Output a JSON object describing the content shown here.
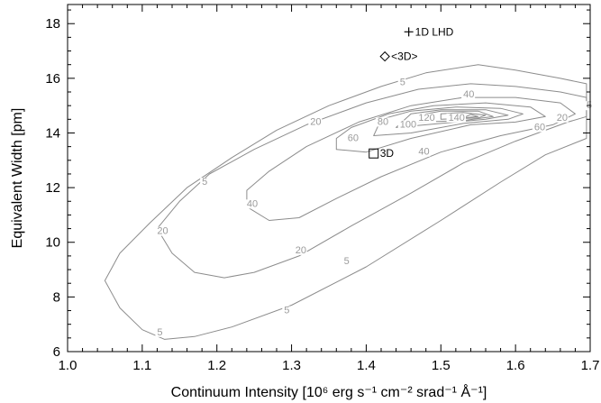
{
  "chart_data": {
    "type": "contour",
    "xlabel": "Continuum Intensity [10⁶ erg s⁻¹ cm⁻² srad⁻¹ Å⁻¹]",
    "ylabel": "Equivalent Width [pm]",
    "xlim": [
      1.0,
      1.7
    ],
    "ylim": [
      6.0,
      18.7
    ],
    "xticks": [
      "1.0",
      "1.1",
      "1.2",
      "1.3",
      "1.4",
      "1.5",
      "1.6",
      "1.7"
    ],
    "yticks": [
      "6",
      "8",
      "10",
      "12",
      "14",
      "16",
      "18"
    ],
    "line_color": "#8c8c8c",
    "label_color": "#9a9a9a",
    "contours": [
      {
        "level": "5",
        "points": [
          [
            1.05,
            8.6
          ],
          [
            1.07,
            7.6
          ],
          [
            1.1,
            6.8
          ],
          [
            1.13,
            6.45
          ],
          [
            1.17,
            6.55
          ],
          [
            1.22,
            6.9
          ],
          [
            1.3,
            7.7
          ],
          [
            1.4,
            9.1
          ],
          [
            1.5,
            10.8
          ],
          [
            1.58,
            12.2
          ],
          [
            1.64,
            13.2
          ],
          [
            1.695,
            13.8
          ],
          [
            1.695,
            15.8
          ],
          [
            1.66,
            16.0
          ],
          [
            1.6,
            16.3
          ],
          [
            1.55,
            16.5
          ],
          [
            1.48,
            16.2
          ],
          [
            1.42,
            15.7
          ],
          [
            1.35,
            15.0
          ],
          [
            1.28,
            14.1
          ],
          [
            1.22,
            13.1
          ],
          [
            1.16,
            12.0
          ],
          [
            1.11,
            10.7
          ],
          [
            1.07,
            9.6
          ],
          [
            1.05,
            8.6
          ]
        ]
      },
      {
        "level": "20",
        "points": [
          [
            1.12,
            10.5
          ],
          [
            1.14,
            9.6
          ],
          [
            1.17,
            8.9
          ],
          [
            1.21,
            8.7
          ],
          [
            1.25,
            8.9
          ],
          [
            1.31,
            9.5
          ],
          [
            1.38,
            10.6
          ],
          [
            1.46,
            11.8
          ],
          [
            1.53,
            12.9
          ],
          [
            1.6,
            13.7
          ],
          [
            1.67,
            14.4
          ],
          [
            1.695,
            14.6
          ],
          [
            1.695,
            15.3
          ],
          [
            1.66,
            15.5
          ],
          [
            1.6,
            15.7
          ],
          [
            1.54,
            15.8
          ],
          [
            1.47,
            15.6
          ],
          [
            1.4,
            15.1
          ],
          [
            1.32,
            14.3
          ],
          [
            1.25,
            13.4
          ],
          [
            1.19,
            12.5
          ],
          [
            1.15,
            11.5
          ],
          [
            1.12,
            10.5
          ]
        ]
      },
      {
        "level": "40",
        "points": [
          [
            1.24,
            11.3
          ],
          [
            1.27,
            10.8
          ],
          [
            1.31,
            10.9
          ],
          [
            1.36,
            11.6
          ],
          [
            1.42,
            12.4
          ],
          [
            1.5,
            13.3
          ],
          [
            1.58,
            13.9
          ],
          [
            1.65,
            14.3
          ],
          [
            1.68,
            14.7
          ],
          [
            1.66,
            15.1
          ],
          [
            1.6,
            15.3
          ],
          [
            1.53,
            15.3
          ],
          [
            1.46,
            15.0
          ],
          [
            1.39,
            14.4
          ],
          [
            1.32,
            13.5
          ],
          [
            1.27,
            12.6
          ],
          [
            1.24,
            11.9
          ],
          [
            1.24,
            11.3
          ]
        ]
      },
      {
        "level": "60",
        "points": [
          [
            1.36,
            13.4
          ],
          [
            1.4,
            13.3
          ],
          [
            1.46,
            13.8
          ],
          [
            1.54,
            14.3
          ],
          [
            1.6,
            14.4
          ],
          [
            1.64,
            14.6
          ],
          [
            1.62,
            14.95
          ],
          [
            1.56,
            15.1
          ],
          [
            1.49,
            15.0
          ],
          [
            1.43,
            14.7
          ],
          [
            1.38,
            14.2
          ],
          [
            1.36,
            13.8
          ],
          [
            1.36,
            13.4
          ]
        ]
      },
      {
        "level": "80",
        "points": [
          [
            1.41,
            13.9
          ],
          [
            1.46,
            14.0
          ],
          [
            1.53,
            14.35
          ],
          [
            1.59,
            14.5
          ],
          [
            1.61,
            14.7
          ],
          [
            1.58,
            14.9
          ],
          [
            1.52,
            14.95
          ],
          [
            1.46,
            14.8
          ],
          [
            1.42,
            14.5
          ],
          [
            1.41,
            13.9
          ]
        ]
      },
      {
        "level": "100",
        "points": [
          [
            1.44,
            14.2
          ],
          [
            1.5,
            14.35
          ],
          [
            1.56,
            14.5
          ],
          [
            1.59,
            14.65
          ],
          [
            1.56,
            14.85
          ],
          [
            1.5,
            14.85
          ],
          [
            1.46,
            14.7
          ],
          [
            1.44,
            14.2
          ]
        ]
      },
      {
        "level": "120",
        "points": [
          [
            1.47,
            14.4
          ],
          [
            1.53,
            14.45
          ],
          [
            1.57,
            14.6
          ],
          [
            1.55,
            14.8
          ],
          [
            1.5,
            14.8
          ],
          [
            1.47,
            14.65
          ],
          [
            1.47,
            14.4
          ]
        ]
      },
      {
        "level": "140",
        "points": [
          [
            1.5,
            14.5
          ],
          [
            1.55,
            14.55
          ],
          [
            1.56,
            14.65
          ],
          [
            1.53,
            14.75
          ],
          [
            1.5,
            14.7
          ],
          [
            1.5,
            14.5
          ]
        ]
      },
      {
        "level": "",
        "points": [
          [
            1.53,
            14.55
          ],
          [
            1.55,
            14.6
          ],
          [
            1.54,
            14.68
          ],
          [
            1.53,
            14.55
          ]
        ]
      }
    ],
    "contour_labels": [
      {
        "text": "5",
        "x": 1.445,
        "y": 15.75
      },
      {
        "text": "5",
        "x": 1.695,
        "y": 14.9
      },
      {
        "text": "5",
        "x": 1.29,
        "y": 7.4
      },
      {
        "text": "5",
        "x": 1.37,
        "y": 9.2
      },
      {
        "text": "5",
        "x": 1.18,
        "y": 12.1
      },
      {
        "text": "5",
        "x": 1.12,
        "y": 6.6
      },
      {
        "text": "20",
        "x": 1.325,
        "y": 14.3
      },
      {
        "text": "20",
        "x": 1.655,
        "y": 14.45
      },
      {
        "text": "20",
        "x": 1.305,
        "y": 9.6
      },
      {
        "text": "20",
        "x": 1.12,
        "y": 10.3
      },
      {
        "text": "40",
        "x": 1.47,
        "y": 13.2
      },
      {
        "text": "40",
        "x": 1.53,
        "y": 15.3
      },
      {
        "text": "40",
        "x": 1.24,
        "y": 11.3
      },
      {
        "text": "60",
        "x": 1.375,
        "y": 13.7
      },
      {
        "text": "60",
        "x": 1.625,
        "y": 14.1
      },
      {
        "text": "80",
        "x": 1.415,
        "y": 14.3
      },
      {
        "text": "100",
        "x": 1.445,
        "y": 14.2
      },
      {
        "text": "120",
        "x": 1.47,
        "y": 14.45
      },
      {
        "text": "140",
        "x": 1.51,
        "y": 14.45
      }
    ],
    "markers": [
      {
        "symbol": "plus",
        "x": 1.457,
        "y": 17.7,
        "label": "1D LHD"
      },
      {
        "symbol": "diamond",
        "x": 1.425,
        "y": 16.8,
        "label": "<3D>"
      },
      {
        "symbol": "square",
        "x": 1.41,
        "y": 13.25,
        "label": "3D"
      }
    ]
  }
}
